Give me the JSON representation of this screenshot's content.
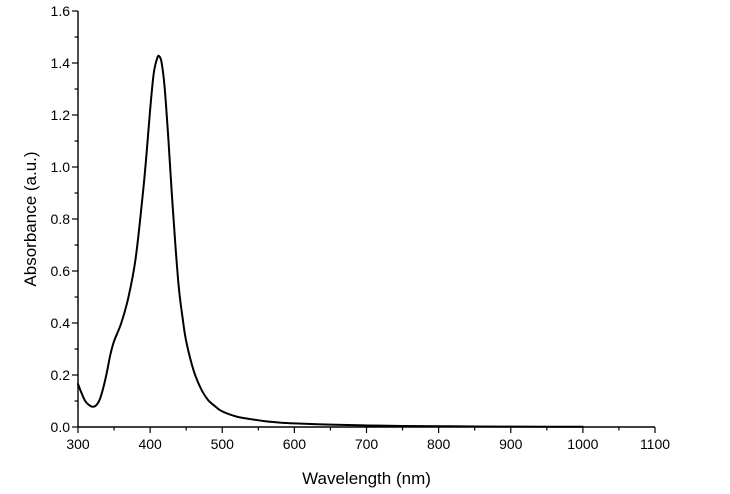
{
  "chart_data": {
    "type": "line",
    "title": "",
    "xlabel": "Wavelength (nm)",
    "ylabel": "Absorbance (a.u.)",
    "xlim": [
      300,
      1100
    ],
    "ylim": [
      0.0,
      1.6
    ],
    "x_ticks": [
      300,
      400,
      500,
      600,
      700,
      800,
      900,
      1000,
      1100
    ],
    "x_tick_labels": [
      "300",
      "400",
      "500",
      "600",
      "700",
      "800",
      "900",
      "1000",
      "1100"
    ],
    "y_ticks": [
      0.0,
      0.2,
      0.4,
      0.6,
      0.8,
      1.0,
      1.2,
      1.4,
      1.6
    ],
    "y_tick_labels": [
      "0.0",
      "0.2",
      "0.4",
      "0.6",
      "0.8",
      "1.0",
      "1.2",
      "1.4",
      "1.6"
    ],
    "grid": false,
    "legend": "none",
    "series": [
      {
        "color": "#000000",
        "x": [
          300,
          305,
          310,
          315,
          320,
          325,
          330,
          335,
          340,
          345,
          350,
          360,
          370,
          380,
          390,
          395,
          400,
          405,
          410,
          413,
          416,
          420,
          425,
          430,
          435,
          440,
          445,
          450,
          460,
          470,
          480,
          490,
          500,
          520,
          540,
          560,
          580,
          600,
          650,
          700,
          750,
          800,
          850,
          900,
          950,
          1000
        ],
        "y": [
          0.165,
          0.13,
          0.1,
          0.085,
          0.078,
          0.083,
          0.105,
          0.15,
          0.21,
          0.28,
          0.33,
          0.4,
          0.5,
          0.65,
          0.9,
          1.05,
          1.22,
          1.36,
          1.42,
          1.425,
          1.4,
          1.31,
          1.12,
          0.9,
          0.7,
          0.53,
          0.42,
          0.33,
          0.22,
          0.15,
          0.105,
          0.08,
          0.06,
          0.04,
          0.03,
          0.022,
          0.017,
          0.014,
          0.009,
          0.006,
          0.004,
          0.003,
          0.002,
          0.0015,
          0.001,
          0.0008
        ]
      }
    ]
  }
}
